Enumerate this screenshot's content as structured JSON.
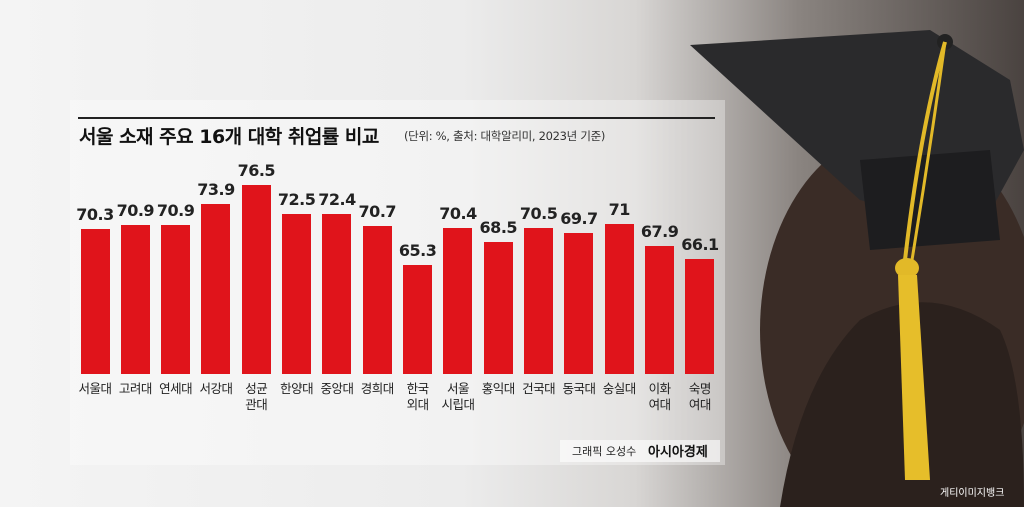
{
  "chart_data": {
    "type": "bar",
    "title": "서울 소재 주요 16개 대학 취업률 비교",
    "subtitle": "(단위: %, 출처: 대학알리미, 2023년 기준)",
    "categories": [
      "서울대",
      "고려대",
      "연세대",
      "서강대",
      "성균\n관대",
      "한양대",
      "중앙대",
      "경희대",
      "한국\n외대",
      "서울\n시립대",
      "홍익대",
      "건국대",
      "동국대",
      "숭실대",
      "이화\n여대",
      "숙명\n여대"
    ],
    "values": [
      70.3,
      70.9,
      70.9,
      73.9,
      76.5,
      72.5,
      72.4,
      70.7,
      65.3,
      70.4,
      68.5,
      70.5,
      69.7,
      71,
      67.9,
      66.1
    ],
    "color": "#e0141b",
    "ylim": [
      50,
      80
    ],
    "credit": "그래픽 오성수",
    "publisher": "아시아경제",
    "photo_credit": "게티이미지뱅크"
  }
}
